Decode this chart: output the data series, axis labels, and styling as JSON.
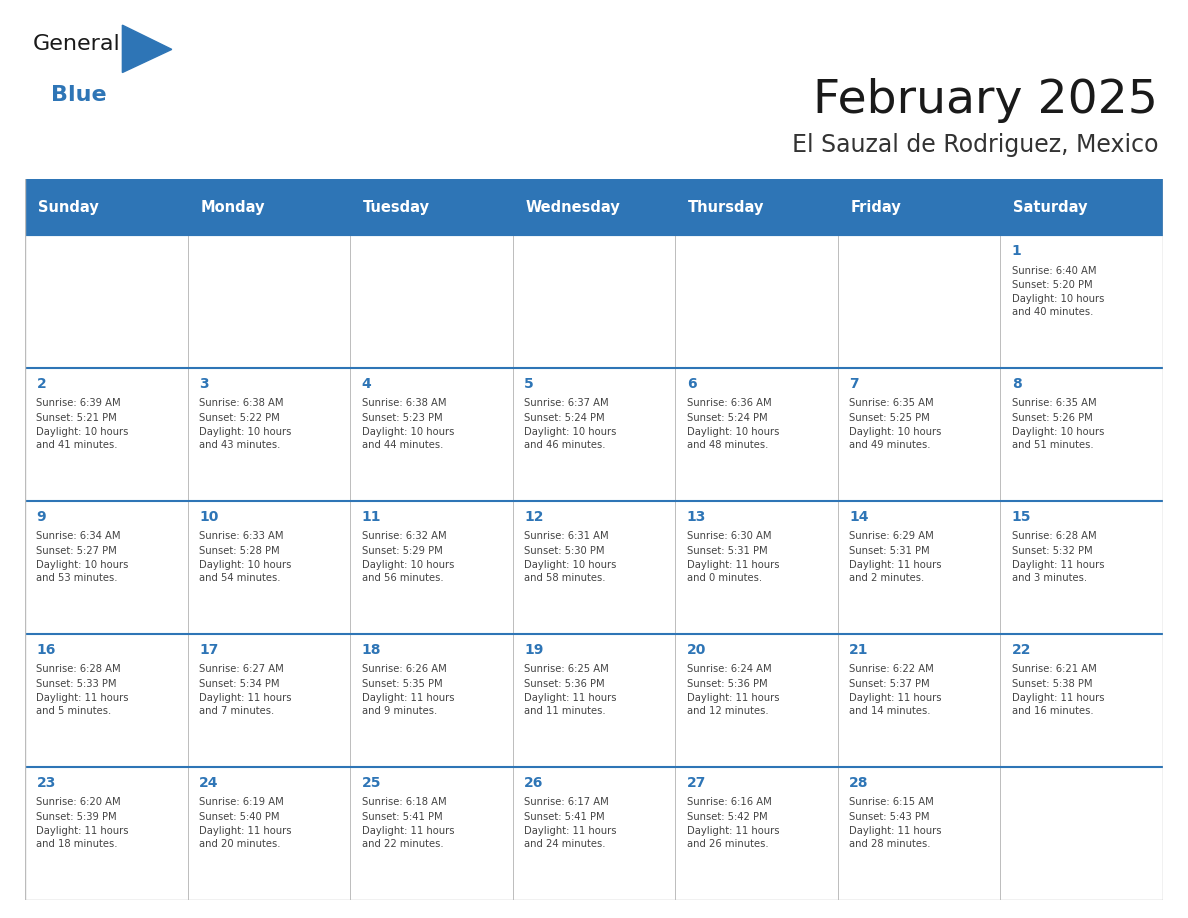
{
  "title": "February 2025",
  "subtitle": "El Sauzal de Rodriguez, Mexico",
  "header_color": "#2E75B6",
  "header_text_color": "#FFFFFF",
  "cell_bg_color": "#FFFFFF",
  "border_color": "#BBBBBB",
  "header_border_color": "#2E75B6",
  "day_headers": [
    "Sunday",
    "Monday",
    "Tuesday",
    "Wednesday",
    "Thursday",
    "Friday",
    "Saturday"
  ],
  "title_color": "#1a1a1a",
  "subtitle_color": "#333333",
  "day_num_color": "#2E75B6",
  "cell_text_color": "#444444",
  "logo_general_color": "#1a1a1a",
  "logo_blue_color": "#2E75B6",
  "calendar_data": [
    [
      null,
      null,
      null,
      null,
      null,
      null,
      {
        "day": 1,
        "sunrise": "6:40 AM",
        "sunset": "5:20 PM",
        "daylight": "10 hours and 40 minutes."
      }
    ],
    [
      {
        "day": 2,
        "sunrise": "6:39 AM",
        "sunset": "5:21 PM",
        "daylight": "10 hours and 41 minutes."
      },
      {
        "day": 3,
        "sunrise": "6:38 AM",
        "sunset": "5:22 PM",
        "daylight": "10 hours and 43 minutes."
      },
      {
        "day": 4,
        "sunrise": "6:38 AM",
        "sunset": "5:23 PM",
        "daylight": "10 hours and 44 minutes."
      },
      {
        "day": 5,
        "sunrise": "6:37 AM",
        "sunset": "5:24 PM",
        "daylight": "10 hours and 46 minutes."
      },
      {
        "day": 6,
        "sunrise": "6:36 AM",
        "sunset": "5:24 PM",
        "daylight": "10 hours and 48 minutes."
      },
      {
        "day": 7,
        "sunrise": "6:35 AM",
        "sunset": "5:25 PM",
        "daylight": "10 hours and 49 minutes."
      },
      {
        "day": 8,
        "sunrise": "6:35 AM",
        "sunset": "5:26 PM",
        "daylight": "10 hours and 51 minutes."
      }
    ],
    [
      {
        "day": 9,
        "sunrise": "6:34 AM",
        "sunset": "5:27 PM",
        "daylight": "10 hours and 53 minutes."
      },
      {
        "day": 10,
        "sunrise": "6:33 AM",
        "sunset": "5:28 PM",
        "daylight": "10 hours and 54 minutes."
      },
      {
        "day": 11,
        "sunrise": "6:32 AM",
        "sunset": "5:29 PM",
        "daylight": "10 hours and 56 minutes."
      },
      {
        "day": 12,
        "sunrise": "6:31 AM",
        "sunset": "5:30 PM",
        "daylight": "10 hours and 58 minutes."
      },
      {
        "day": 13,
        "sunrise": "6:30 AM",
        "sunset": "5:31 PM",
        "daylight": "11 hours and 0 minutes."
      },
      {
        "day": 14,
        "sunrise": "6:29 AM",
        "sunset": "5:31 PM",
        "daylight": "11 hours and 2 minutes."
      },
      {
        "day": 15,
        "sunrise": "6:28 AM",
        "sunset": "5:32 PM",
        "daylight": "11 hours and 3 minutes."
      }
    ],
    [
      {
        "day": 16,
        "sunrise": "6:28 AM",
        "sunset": "5:33 PM",
        "daylight": "11 hours and 5 minutes."
      },
      {
        "day": 17,
        "sunrise": "6:27 AM",
        "sunset": "5:34 PM",
        "daylight": "11 hours and 7 minutes."
      },
      {
        "day": 18,
        "sunrise": "6:26 AM",
        "sunset": "5:35 PM",
        "daylight": "11 hours and 9 minutes."
      },
      {
        "day": 19,
        "sunrise": "6:25 AM",
        "sunset": "5:36 PM",
        "daylight": "11 hours and 11 minutes."
      },
      {
        "day": 20,
        "sunrise": "6:24 AM",
        "sunset": "5:36 PM",
        "daylight": "11 hours and 12 minutes."
      },
      {
        "day": 21,
        "sunrise": "6:22 AM",
        "sunset": "5:37 PM",
        "daylight": "11 hours and 14 minutes."
      },
      {
        "day": 22,
        "sunrise": "6:21 AM",
        "sunset": "5:38 PM",
        "daylight": "11 hours and 16 minutes."
      }
    ],
    [
      {
        "day": 23,
        "sunrise": "6:20 AM",
        "sunset": "5:39 PM",
        "daylight": "11 hours and 18 minutes."
      },
      {
        "day": 24,
        "sunrise": "6:19 AM",
        "sunset": "5:40 PM",
        "daylight": "11 hours and 20 minutes."
      },
      {
        "day": 25,
        "sunrise": "6:18 AM",
        "sunset": "5:41 PM",
        "daylight": "11 hours and 22 minutes."
      },
      {
        "day": 26,
        "sunrise": "6:17 AM",
        "sunset": "5:41 PM",
        "daylight": "11 hours and 24 minutes."
      },
      {
        "day": 27,
        "sunrise": "6:16 AM",
        "sunset": "5:42 PM",
        "daylight": "11 hours and 26 minutes."
      },
      {
        "day": 28,
        "sunrise": "6:15 AM",
        "sunset": "5:43 PM",
        "daylight": "11 hours and 28 minutes."
      },
      null
    ]
  ]
}
